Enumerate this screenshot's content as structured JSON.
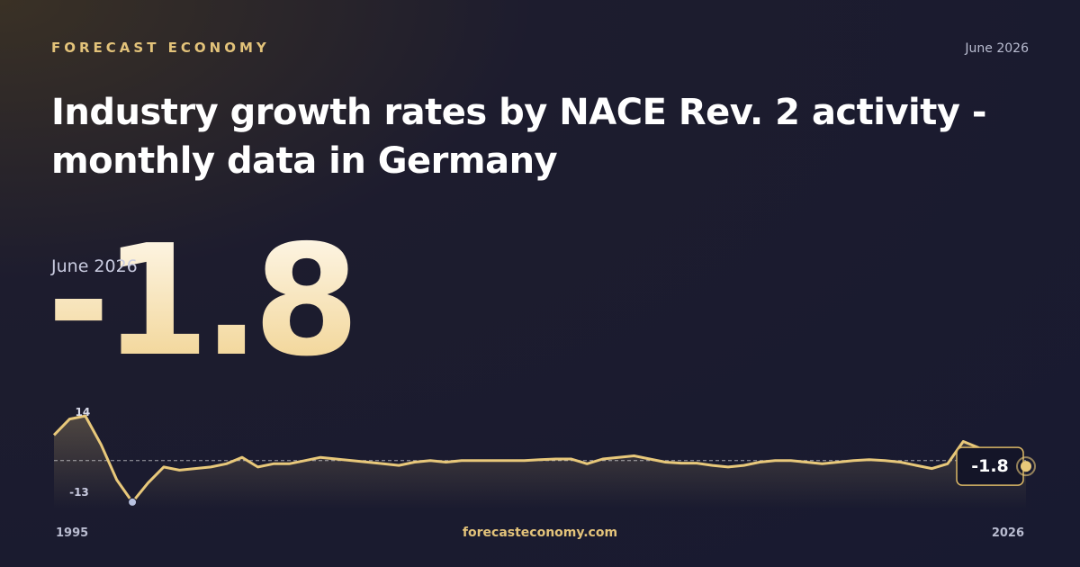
{
  "brand": "FORECAST ECONOMY",
  "date": "June 2026",
  "title": "Industry growth rates by NACE Rev. 2 activity - monthly data in Germany",
  "footer": "forecasteconomy.com",
  "chart_data": {
    "type": "line",
    "color": "#e8c87a",
    "x_labels": [
      "1995",
      "2026"
    ],
    "ylim": [
      -15,
      16
    ],
    "baseline": 0,
    "values": [
      8,
      13,
      14,
      5,
      -6,
      -13,
      -7,
      -2,
      -3,
      -2.5,
      -2,
      -1,
      1,
      -2,
      -1,
      -1,
      0,
      1,
      0.5,
      0,
      -0.5,
      -1,
      -1.5,
      -0.5,
      0,
      -0.5,
      0,
      0,
      0,
      0,
      0,
      0.3,
      0.5,
      0.5,
      -1,
      0.5,
      1,
      1.5,
      0.5,
      -0.5,
      -0.8,
      -0.8,
      -1.5,
      -2,
      -1.5,
      -0.5,
      0,
      0,
      -0.5,
      -1,
      -0.5,
      0,
      0.3,
      0,
      -0.5,
      -1.5,
      -2.5,
      -1,
      6,
      4,
      -1,
      -1.5,
      -1.8
    ]
  }
}
